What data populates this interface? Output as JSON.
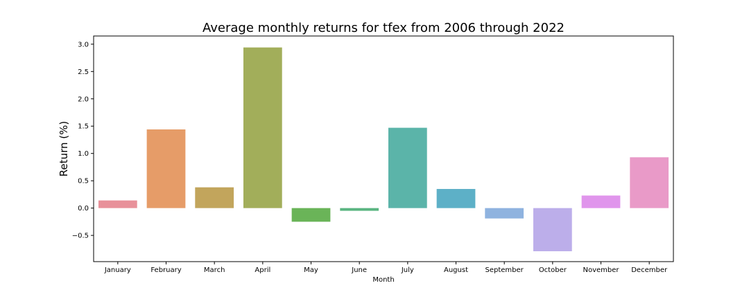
{
  "chart_data": {
    "type": "bar",
    "title": "Average monthly returns for tfex from 2006 through 2022",
    "xlabel": "Month",
    "ylabel": "Return (%)",
    "categories": [
      "January",
      "February",
      "March",
      "April",
      "May",
      "June",
      "July",
      "August",
      "September",
      "October",
      "November",
      "December"
    ],
    "values": [
      0.14,
      1.44,
      0.38,
      2.94,
      -0.25,
      -0.05,
      1.47,
      0.35,
      -0.19,
      -0.79,
      0.23,
      0.93
    ],
    "colors": [
      "#e8919a",
      "#e69c68",
      "#c2a55c",
      "#a2ae5a",
      "#6ab458",
      "#5ab581",
      "#5bb4a9",
      "#5db0c7",
      "#8fb3df",
      "#bcaeea",
      "#e095ec",
      "#e99ac8"
    ],
    "ylim": [
      -0.98,
      3.15
    ],
    "yticks": [
      3.0,
      2.5,
      2.0,
      1.5,
      1.0,
      0.5,
      0.0,
      -0.5
    ],
    "ytick_labels": [
      "3.0",
      "2.5",
      "2.0",
      "1.5",
      "1.0",
      "0.5",
      "0.0",
      "−0.5"
    ],
    "grid": false,
    "legend": "none"
  }
}
